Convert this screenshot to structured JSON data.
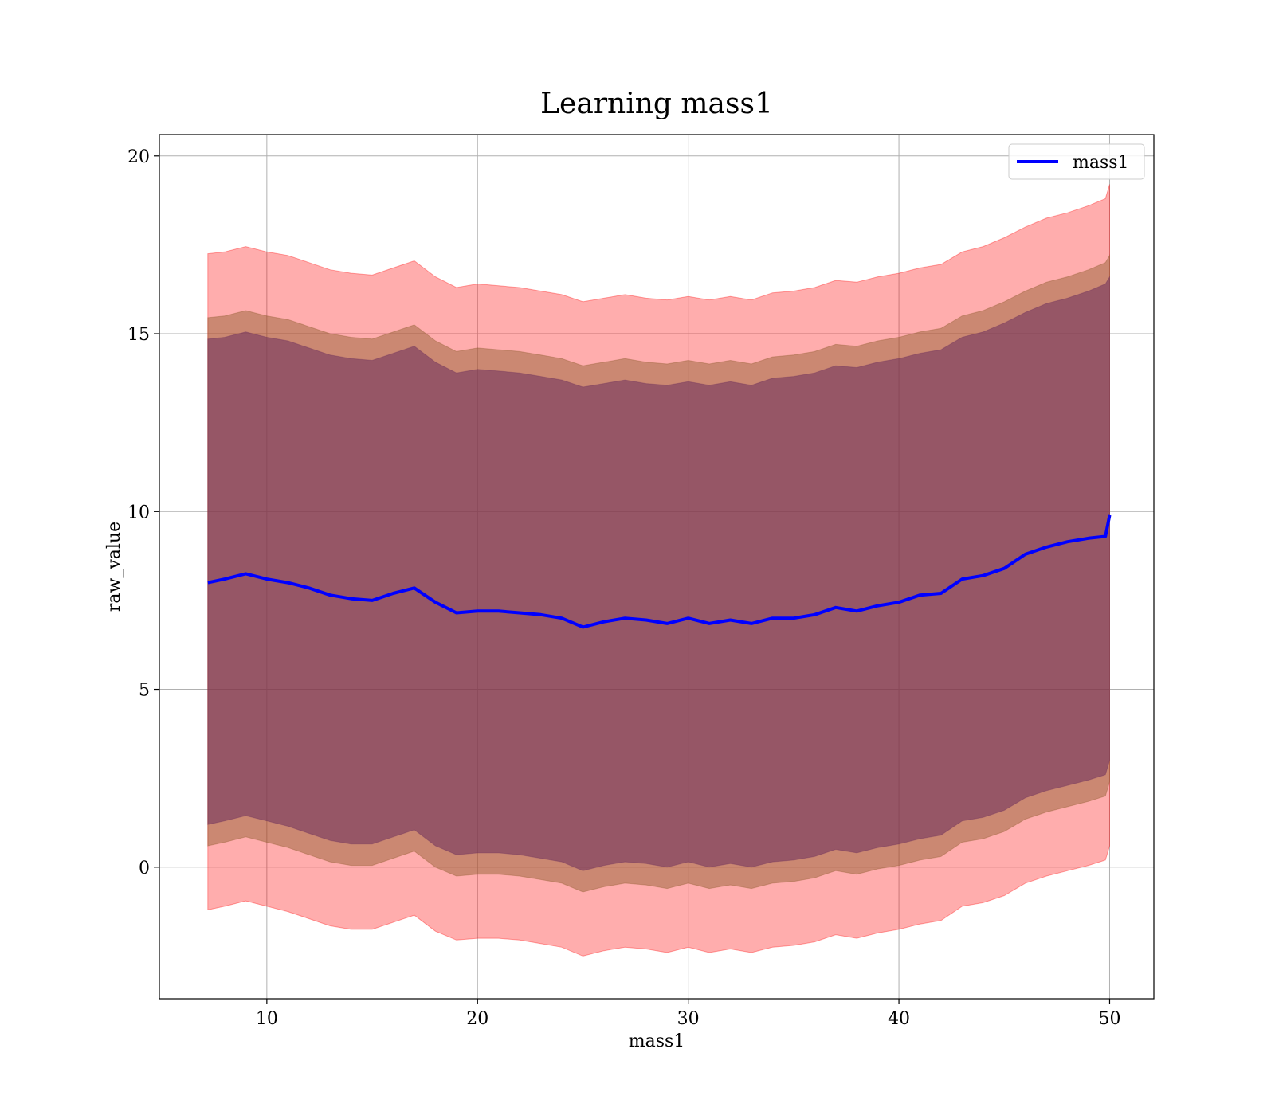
{
  "chart_data": {
    "type": "area",
    "title": "Learning mass1",
    "xlabel": "mass1",
    "ylabel": "raw_value",
    "xlim": [
      4.9,
      52.1
    ],
    "ylim": [
      -3.7,
      20.6
    ],
    "xticks": [
      10,
      20,
      30,
      40,
      50
    ],
    "yticks": [
      0,
      5,
      10,
      15,
      20
    ],
    "grid": true,
    "legend": {
      "position": "top-right",
      "entries": [
        "mass1"
      ]
    },
    "x": [
      7.2,
      8,
      9,
      10,
      11,
      12,
      13,
      14,
      15,
      16,
      17,
      18,
      19,
      20,
      21,
      22,
      23,
      24,
      25,
      26,
      27,
      28,
      29,
      30,
      31,
      32,
      33,
      34,
      35,
      36,
      37,
      38,
      39,
      40,
      41,
      42,
      43,
      44,
      45,
      46,
      47,
      48,
      49,
      49.8,
      50
    ],
    "series": [
      {
        "name": "mass1",
        "color": "#0000ff",
        "values": [
          8.0,
          8.1,
          8.25,
          8.1,
          8.0,
          7.85,
          7.65,
          7.55,
          7.5,
          7.7,
          7.85,
          7.45,
          7.15,
          7.2,
          7.2,
          7.15,
          7.1,
          7.0,
          6.75,
          6.9,
          7.0,
          6.95,
          6.85,
          7.0,
          6.85,
          6.95,
          6.85,
          7.0,
          7.0,
          7.1,
          7.3,
          7.2,
          7.35,
          7.45,
          7.65,
          7.7,
          8.1,
          8.2,
          8.4,
          8.8,
          9.0,
          9.15,
          9.25,
          9.3,
          9.9
        ]
      }
    ],
    "bands": [
      {
        "name": "outer",
        "color": "#ff0000",
        "opacity": 0.32,
        "upper": [
          17.25,
          17.3,
          17.45,
          17.3,
          17.2,
          17.0,
          16.8,
          16.7,
          16.65,
          16.85,
          17.05,
          16.6,
          16.3,
          16.4,
          16.35,
          16.3,
          16.2,
          16.1,
          15.9,
          16.0,
          16.1,
          16.0,
          15.95,
          16.05,
          15.95,
          16.05,
          15.95,
          16.15,
          16.2,
          16.3,
          16.5,
          16.45,
          16.6,
          16.7,
          16.85,
          16.95,
          17.3,
          17.45,
          17.7,
          18.0,
          18.25,
          18.4,
          18.6,
          18.8,
          19.2
        ],
        "lower": [
          -1.2,
          -1.1,
          -0.95,
          -1.1,
          -1.25,
          -1.45,
          -1.65,
          -1.75,
          -1.75,
          -1.55,
          -1.35,
          -1.8,
          -2.05,
          -2.0,
          -2.0,
          -2.05,
          -2.15,
          -2.25,
          -2.5,
          -2.35,
          -2.25,
          -2.3,
          -2.4,
          -2.25,
          -2.4,
          -2.3,
          -2.4,
          -2.25,
          -2.2,
          -2.1,
          -1.9,
          -2.0,
          -1.85,
          -1.75,
          -1.6,
          -1.5,
          -1.1,
          -1.0,
          -0.8,
          -0.45,
          -0.25,
          -0.1,
          0.05,
          0.2,
          0.6
        ]
      },
      {
        "name": "middle",
        "color": "#8b5a2b",
        "opacity": 0.45,
        "upper": [
          15.45,
          15.5,
          15.65,
          15.5,
          15.4,
          15.2,
          15.0,
          14.9,
          14.85,
          15.05,
          15.25,
          14.8,
          14.5,
          14.6,
          14.55,
          14.5,
          14.4,
          14.3,
          14.1,
          14.2,
          14.3,
          14.2,
          14.15,
          14.25,
          14.15,
          14.25,
          14.15,
          14.35,
          14.4,
          14.5,
          14.7,
          14.65,
          14.8,
          14.9,
          15.05,
          15.15,
          15.5,
          15.65,
          15.9,
          16.2,
          16.45,
          16.6,
          16.8,
          17.0,
          17.2
        ],
        "lower": [
          0.6,
          0.7,
          0.85,
          0.7,
          0.55,
          0.35,
          0.15,
          0.05,
          0.05,
          0.25,
          0.45,
          0.0,
          -0.25,
          -0.2,
          -0.2,
          -0.25,
          -0.35,
          -0.45,
          -0.7,
          -0.55,
          -0.45,
          -0.5,
          -0.6,
          -0.45,
          -0.6,
          -0.5,
          -0.6,
          -0.45,
          -0.4,
          -0.3,
          -0.1,
          -0.2,
          -0.05,
          0.05,
          0.2,
          0.3,
          0.7,
          0.8,
          1.0,
          1.35,
          1.55,
          1.7,
          1.85,
          2.0,
          2.4
        ]
      },
      {
        "name": "inner",
        "color": "#6b2d5c",
        "opacity": 0.55,
        "upper": [
          14.85,
          14.9,
          15.05,
          14.9,
          14.8,
          14.6,
          14.4,
          14.3,
          14.25,
          14.45,
          14.65,
          14.2,
          13.9,
          14.0,
          13.95,
          13.9,
          13.8,
          13.7,
          13.5,
          13.6,
          13.7,
          13.6,
          13.55,
          13.65,
          13.55,
          13.65,
          13.55,
          13.75,
          13.8,
          13.9,
          14.1,
          14.05,
          14.2,
          14.3,
          14.45,
          14.55,
          14.9,
          15.05,
          15.3,
          15.6,
          15.85,
          16.0,
          16.2,
          16.4,
          16.6
        ],
        "lower": [
          1.2,
          1.3,
          1.45,
          1.3,
          1.15,
          0.95,
          0.75,
          0.65,
          0.65,
          0.85,
          1.05,
          0.6,
          0.35,
          0.4,
          0.4,
          0.35,
          0.25,
          0.15,
          -0.1,
          0.05,
          0.15,
          0.1,
          0.0,
          0.15,
          0.0,
          0.1,
          0.0,
          0.15,
          0.2,
          0.3,
          0.5,
          0.4,
          0.55,
          0.65,
          0.8,
          0.9,
          1.3,
          1.4,
          1.6,
          1.95,
          2.15,
          2.3,
          2.45,
          2.6,
          3.0
        ]
      }
    ]
  }
}
